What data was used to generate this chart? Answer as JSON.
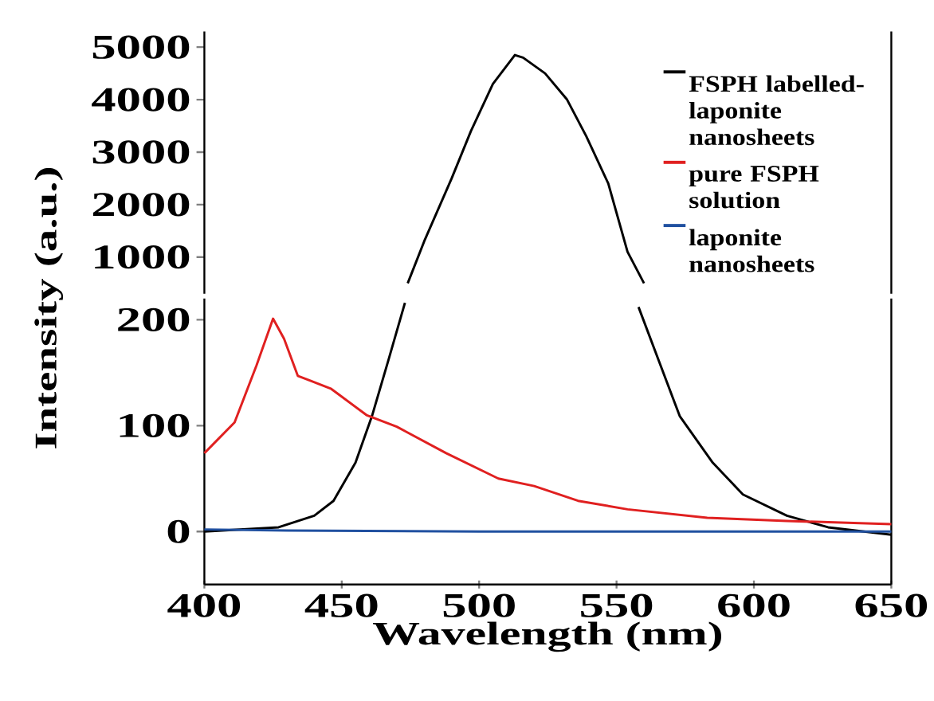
{
  "chart_data": [
    {
      "type": "line",
      "xlim": [
        400,
        650
      ],
      "ylim": [
        300,
        5300
      ],
      "yticks": [
        1000,
        2000,
        3000,
        4000,
        5000
      ],
      "tick_labels": "y",
      "series": [
        {
          "color": "#000000",
          "x": [
            474,
            480,
            490,
            497,
            505,
            513,
            516,
            524,
            532,
            539,
            547,
            554,
            560
          ],
          "values": [
            500,
            1300,
            2500,
            3400,
            4300,
            4850,
            4800,
            4500,
            4000,
            3300,
            2400,
            1100,
            500
          ]
        }
      ]
    },
    {
      "type": "line",
      "xlim": [
        400,
        650
      ],
      "xticks": [
        400,
        450,
        500,
        550,
        600,
        650
      ],
      "ylim": [
        -50,
        220
      ],
      "yticks": [
        0,
        100,
        200
      ],
      "xlabel": "Wavelength (nm)",
      "ylabel": "Intensity  (a.u.)",
      "legend": "top right",
      "series": [
        {
          "name": "FSPH labelled-laponite nanosheets",
          "color": "#000000",
          "x": [
            400,
            427,
            440,
            447,
            455,
            461,
            467,
            473,
            515,
            558,
            566,
            573,
            585,
            596,
            612,
            627,
            650
          ],
          "values": [
            0,
            4,
            15,
            29,
            65,
            109,
            162,
            216,
            null,
            212,
            157,
            109,
            65,
            35,
            15,
            4,
            -3
          ]
        },
        {
          "name": "pure FSPH solution",
          "color": "#e02020",
          "x": [
            400,
            411,
            419,
            425,
            429,
            434,
            438,
            446,
            459,
            470,
            488,
            507,
            520,
            536,
            554,
            583,
            612,
            650
          ],
          "values": [
            74,
            103,
            157,
            201,
            182,
            147,
            143,
            135,
            110,
            99,
            74,
            50,
            43,
            29,
            21,
            13,
            10,
            7
          ]
        },
        {
          "name": "laponite nanosheets",
          "color": "#2050a0",
          "x": [
            400,
            430,
            500,
            650
          ],
          "values": [
            2,
            1,
            0,
            0
          ]
        }
      ]
    }
  ]
}
